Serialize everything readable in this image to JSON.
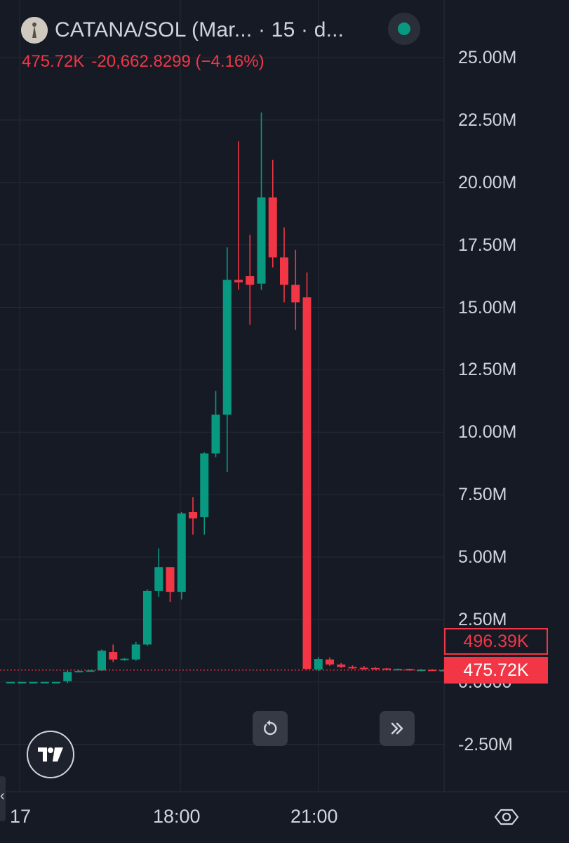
{
  "header": {
    "symbol_text": "CATANA/SOL (Mar... · 15 · d...",
    "ohlc_close": "475.72K",
    "ohlc_change": "-20,662.8299 (−4.16%)"
  },
  "price_tags": {
    "previous": "496.39K",
    "last": "475.72K"
  },
  "time_labels": {
    "left_partial": "17",
    "t1": "18:00",
    "t2": "21:00"
  },
  "colors": {
    "up": "#089981",
    "down": "#f23645",
    "background": "#161a25",
    "grid": "#262a35",
    "text": "#d1d4dc"
  },
  "icons": {
    "reset": "reset-icon",
    "scroll": "scroll-to-realtime-icon",
    "logo": "tradingview-logo-icon",
    "settings": "settings-icon"
  },
  "chart_data": {
    "type": "candlestick",
    "title": "CATANA/SOL",
    "interval": "15",
    "y_ticks": [
      "25.00M",
      "22.50M",
      "20.00M",
      "17.50M",
      "15.00M",
      "12.50M",
      "10.00M",
      "7.50M",
      "5.00M",
      "2.50M",
      "0.0000",
      "-2.50M"
    ],
    "y_tick_values": [
      25000000,
      22500000,
      20000000,
      17500000,
      15000000,
      12500000,
      10000000,
      7500000,
      5000000,
      2500000,
      0,
      -2500000
    ],
    "ylim": [
      -2500000,
      25000000
    ],
    "x_ticks": [
      "18:00",
      "21:00"
    ],
    "last_price": 475720,
    "previous_close": 496390,
    "candles": [
      {
        "o": 0,
        "h": 0,
        "l": 0,
        "c": 0
      },
      {
        "o": 0,
        "h": 0,
        "l": 0,
        "c": 0
      },
      {
        "o": 0,
        "h": 0,
        "l": 0,
        "c": 0
      },
      {
        "o": 0,
        "h": 0,
        "l": 0,
        "c": 0
      },
      {
        "o": 0,
        "h": 0,
        "l": 0,
        "c": 0
      },
      {
        "o": 30000,
        "h": 450000,
        "l": -40000,
        "c": 400000
      },
      {
        "o": 420000,
        "h": 470000,
        "l": 380000,
        "c": 440000
      },
      {
        "o": 440000,
        "h": 480000,
        "l": 410000,
        "c": 460000
      },
      {
        "o": 460000,
        "h": 1300000,
        "l": 440000,
        "c": 1250000
      },
      {
        "o": 1200000,
        "h": 1500000,
        "l": 800000,
        "c": 900000
      },
      {
        "o": 900000,
        "h": 960000,
        "l": 850000,
        "c": 930000
      },
      {
        "o": 900000,
        "h": 1600000,
        "l": 850000,
        "c": 1500000
      },
      {
        "o": 1500000,
        "h": 3700000,
        "l": 1450000,
        "c": 3650000
      },
      {
        "o": 3650000,
        "h": 5350000,
        "l": 3400000,
        "c": 4600000
      },
      {
        "o": 4600000,
        "h": 4600000,
        "l": 3200000,
        "c": 3600000
      },
      {
        "o": 3600000,
        "h": 6800000,
        "l": 3300000,
        "c": 6750000
      },
      {
        "o": 6800000,
        "h": 7400000,
        "l": 5900000,
        "c": 6550000
      },
      {
        "o": 6600000,
        "h": 9200000,
        "l": 5900000,
        "c": 9150000
      },
      {
        "o": 9150000,
        "h": 11650000,
        "l": 9000000,
        "c": 10700000
      },
      {
        "o": 10700000,
        "h": 17400000,
        "l": 8400000,
        "c": 16100000
      },
      {
        "o": 16100000,
        "h": 21650000,
        "l": 15700000,
        "c": 16000000
      },
      {
        "o": 16250000,
        "h": 17900000,
        "l": 14300000,
        "c": 15900000
      },
      {
        "o": 15950000,
        "h": 22800000,
        "l": 15700000,
        "c": 19400000
      },
      {
        "o": 19400000,
        "h": 20900000,
        "l": 16600000,
        "c": 17000000
      },
      {
        "o": 17000000,
        "h": 18200000,
        "l": 15200000,
        "c": 15900000
      },
      {
        "o": 15900000,
        "h": 17300000,
        "l": 14100000,
        "c": 15200000
      },
      {
        "o": 15400000,
        "h": 16400000,
        "l": 500000,
        "c": 520000
      },
      {
        "o": 500000,
        "h": 1000000,
        "l": 440000,
        "c": 920000
      },
      {
        "o": 900000,
        "h": 980000,
        "l": 640000,
        "c": 700000
      },
      {
        "o": 700000,
        "h": 760000,
        "l": 560000,
        "c": 600000
      },
      {
        "o": 600000,
        "h": 660000,
        "l": 520000,
        "c": 570000
      },
      {
        "o": 570000,
        "h": 640000,
        "l": 480000,
        "c": 560000
      },
      {
        "o": 560000,
        "h": 600000,
        "l": 500000,
        "c": 540000
      },
      {
        "o": 540000,
        "h": 560000,
        "l": 470000,
        "c": 500000
      },
      {
        "o": 500000,
        "h": 540000,
        "l": 470000,
        "c": 520000
      },
      {
        "o": 520000,
        "h": 530000,
        "l": 450000,
        "c": 470000
      },
      {
        "o": 470000,
        "h": 520000,
        "l": 460000,
        "c": 490000
      },
      {
        "o": 490000,
        "h": 510000,
        "l": 460000,
        "c": 470000
      },
      {
        "o": 470000,
        "h": 500000,
        "l": 450000,
        "c": 480000
      }
    ]
  }
}
